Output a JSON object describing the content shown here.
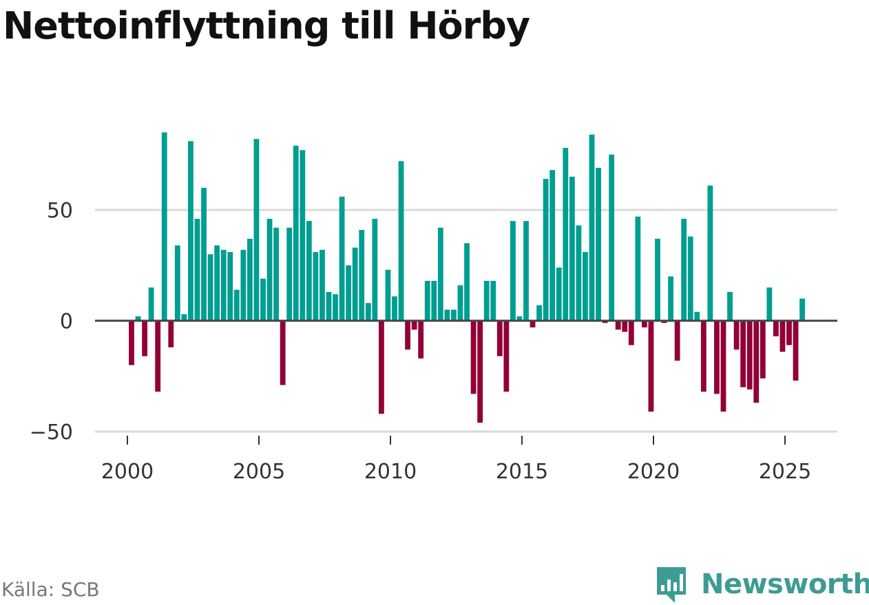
{
  "colors": {
    "positive": "#009e91",
    "negative": "#930036",
    "grid": "#d9d9d9",
    "zero": "#444444",
    "brand": "#3e9b93"
  },
  "chart_data": {
    "type": "bar",
    "title": "Nettoinflyttning till Hörby",
    "xlabel": "",
    "ylabel": "",
    "ylim": [
      -50,
      100
    ],
    "xlim": [
      1999.2,
      2027.2
    ],
    "y_ticks": [
      -50,
      0,
      50
    ],
    "y_tick_labels": [
      "−50",
      "0",
      "50"
    ],
    "x_ticks": [
      2000,
      2005,
      2010,
      2015,
      2020,
      2025
    ],
    "x_tick_labels": [
      "2000",
      "2005",
      "2010",
      "2015",
      "2020",
      "2025"
    ],
    "start_year": 2000,
    "step": 0.25,
    "values": [
      -20,
      2,
      -16,
      15,
      -32,
      85,
      -12,
      34,
      3,
      81,
      46,
      60,
      30,
      34,
      32,
      31,
      14,
      32,
      37,
      82,
      19,
      46,
      42,
      -29,
      42,
      79,
      77,
      45,
      31,
      32,
      13,
      12,
      56,
      25,
      33,
      41,
      8,
      46,
      -42,
      23,
      11,
      72,
      -13,
      -4,
      -17,
      18,
      18,
      42,
      5,
      5,
      16,
      35,
      -33,
      -46,
      18,
      18,
      -16,
      -32,
      45,
      2,
      45,
      -3,
      7,
      64,
      68,
      24,
      78,
      65,
      43,
      31,
      84,
      69,
      -1,
      75,
      -4,
      -5,
      -11,
      47,
      -3,
      -41,
      37,
      -1,
      20,
      -18,
      46,
      38,
      4,
      -32,
      61,
      -33,
      -41,
      13,
      -13,
      -30,
      -31,
      -37,
      -26,
      15,
      -7,
      -14,
      -11,
      -27,
      10
    ]
  },
  "footer": {
    "source": "Källa: SCB",
    "brand": "Newsworthy"
  }
}
